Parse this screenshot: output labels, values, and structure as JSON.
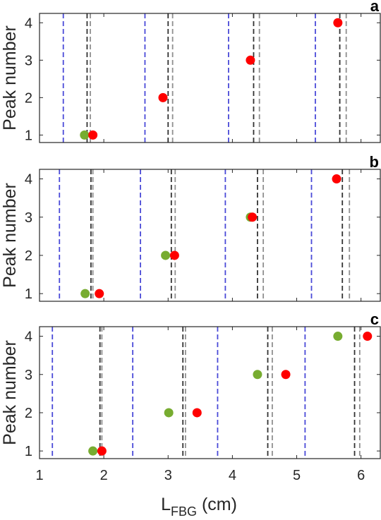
{
  "chart_data": [
    {
      "type": "scatter",
      "panel_label": "a",
      "ylabel": "Peak number",
      "xlim": [
        1,
        6.3
      ],
      "ylim": [
        0.8,
        4.25
      ],
      "yticks": [
        1,
        2,
        3,
        4
      ],
      "xtick_labels_shown": false,
      "grid": false,
      "vlines": {
        "blue": [
          1.37,
          2.64,
          3.94,
          5.29
        ],
        "black": [
          1.74,
          3.0,
          4.33,
          5.67
        ],
        "gray": [
          1.79,
          3.07,
          4.42,
          5.77
        ]
      },
      "series": [
        {
          "color": "#77ac30",
          "points": [
            {
              "x": 1.7,
              "y": 1
            }
          ]
        },
        {
          "color": "#ff0000",
          "points": [
            {
              "x": 1.83,
              "y": 1
            },
            {
              "x": 2.92,
              "y": 2
            },
            {
              "x": 4.28,
              "y": 3
            },
            {
              "x": 5.64,
              "y": 4
            }
          ]
        }
      ]
    },
    {
      "type": "scatter",
      "panel_label": "b",
      "ylabel": "Peak number",
      "xlim": [
        1,
        6.3
      ],
      "ylim": [
        0.8,
        4.25
      ],
      "yticks": [
        1,
        2,
        3,
        4
      ],
      "xtick_labels_shown": false,
      "grid": false,
      "vlines": {
        "blue": [
          1.31,
          2.57,
          3.89,
          5.23
        ],
        "black": [
          1.8,
          3.05,
          4.39,
          5.71
        ],
        "gray": [
          1.83,
          3.11,
          4.48,
          5.82
        ]
      },
      "series": [
        {
          "color": "#77ac30",
          "points": [
            {
              "x": 1.71,
              "y": 1
            },
            {
              "x": 2.96,
              "y": 2
            },
            {
              "x": 4.28,
              "y": 3
            }
          ]
        },
        {
          "color": "#ff0000",
          "points": [
            {
              "x": 1.93,
              "y": 1
            },
            {
              "x": 3.1,
              "y": 2
            },
            {
              "x": 4.31,
              "y": 3
            },
            {
              "x": 5.62,
              "y": 4
            }
          ]
        }
      ]
    },
    {
      "type": "scatter",
      "panel_label": "c",
      "ylabel": "Peak number",
      "xlabel": "L",
      "xlabel_sub": "FBG",
      "xlabel_unit": "(cm)",
      "xlim": [
        1,
        6.3
      ],
      "ylim": [
        0.8,
        4.25
      ],
      "yticks": [
        1,
        2,
        3,
        4
      ],
      "xticks": [
        1,
        2,
        3,
        4,
        5,
        6
      ],
      "xtick_labels_shown": true,
      "grid": false,
      "vlines": {
        "blue": [
          1.2,
          2.45,
          3.77,
          5.13
        ],
        "black": [
          1.94,
          3.23,
          4.55,
          5.9
        ],
        "gray": [
          1.97,
          3.27,
          4.62,
          5.98
        ]
      },
      "series": [
        {
          "color": "#77ac30",
          "points": [
            {
              "x": 1.83,
              "y": 1
            },
            {
              "x": 3.01,
              "y": 2
            },
            {
              "x": 4.39,
              "y": 3
            },
            {
              "x": 5.64,
              "y": 4
            }
          ]
        },
        {
          "color": "#ff0000",
          "points": [
            {
              "x": 1.97,
              "y": 1
            },
            {
              "x": 3.45,
              "y": 2
            },
            {
              "x": 4.83,
              "y": 3
            },
            {
              "x": 6.1,
              "y": 4
            }
          ]
        }
      ]
    }
  ],
  "line_colors": {
    "blue": "#4a4ad8",
    "black": "#333333",
    "gray": "#8f8f8f"
  }
}
